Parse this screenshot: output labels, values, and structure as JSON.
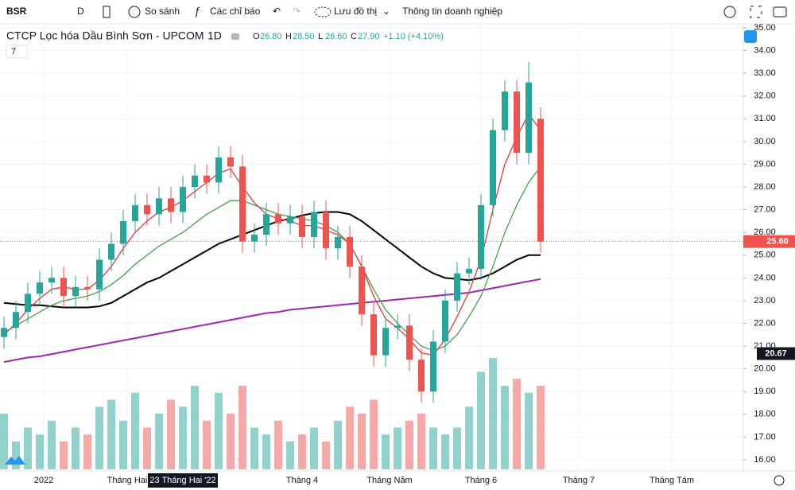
{
  "toolbar": {
    "symbol": "BSR",
    "interval": "D",
    "compare": "So sánh",
    "indicators": "Các chỉ báo",
    "save": "Lưu đồ thị",
    "info": "Thông tin doanh nghiệp"
  },
  "legend": {
    "title": "CTCP Lọc hóa Dầu Bình Sơn - UPCOM",
    "interval": "1D",
    "ohlc": [
      {
        "key": "O",
        "value": 26.8,
        "label": "26.80"
      },
      {
        "key": "H",
        "value": 28.5,
        "label": "28.50"
      },
      {
        "key": "L",
        "value": 26.6,
        "label": "26.60"
      },
      {
        "key": "C",
        "value": 27.9,
        "label": "27.90"
      }
    ],
    "change": "+1.10 (+4.10%)",
    "indicator_count": "7"
  },
  "chart_data": {
    "type": "candlestick",
    "open": [
      21.4,
      21.8,
      22.5,
      23.3,
      23.8,
      24.0,
      23.2,
      23.6,
      23.5,
      24.8,
      25.5,
      26.5,
      27.2,
      26.8,
      27.5,
      26.9,
      28.0,
      28.5,
      28.2,
      29.3,
      28.9,
      25.6,
      25.9,
      26.8,
      26.4,
      26.7,
      25.8,
      26.9,
      25.3,
      25.8,
      24.5,
      22.4,
      20.6,
      21.8,
      21.9,
      20.4,
      19.0,
      21.2,
      23.0,
      24.2,
      24.4,
      27.2,
      30.5,
      32.2,
      29.5,
      31.0
    ],
    "high": [
      22.3,
      23.0,
      23.8,
      24.3,
      24.5,
      24.5,
      24.1,
      24.1,
      25.3,
      26.0,
      27.0,
      27.7,
      27.7,
      28.0,
      28.0,
      28.5,
      29.0,
      29.0,
      29.8,
      29.8,
      29.4,
      26.4,
      27.3,
      27.3,
      27.2,
      27.2,
      27.4,
      27.4,
      26.3,
      26.3,
      25.0,
      22.9,
      22.3,
      22.4,
      22.4,
      20.9,
      21.7,
      23.5,
      24.7,
      24.9,
      27.7,
      31.0,
      32.7,
      32.7,
      33.5,
      31.5
    ],
    "low": [
      20.9,
      21.3,
      22.0,
      22.8,
      23.3,
      22.7,
      22.7,
      23.0,
      23.0,
      24.3,
      25.0,
      26.0,
      26.3,
      26.3,
      26.4,
      26.4,
      27.5,
      27.7,
      27.7,
      28.4,
      25.1,
      25.1,
      25.4,
      25.9,
      25.9,
      25.3,
      25.3,
      24.8,
      24.8,
      24.0,
      21.9,
      20.1,
      20.1,
      21.3,
      19.9,
      18.5,
      18.5,
      20.7,
      22.5,
      23.7,
      23.9,
      26.7,
      30.0,
      29.0,
      29.0,
      25.1
    ],
    "close": [
      21.8,
      22.5,
      23.3,
      23.8,
      24.0,
      23.2,
      23.6,
      23.5,
      24.8,
      25.5,
      26.5,
      27.2,
      26.8,
      27.5,
      26.9,
      28.0,
      28.5,
      28.2,
      29.3,
      28.9,
      25.6,
      25.9,
      26.8,
      26.4,
      26.7,
      25.8,
      26.9,
      25.3,
      25.8,
      24.5,
      22.4,
      20.6,
      21.8,
      21.9,
      20.4,
      19.0,
      21.2,
      23.0,
      24.2,
      24.4,
      27.2,
      30.5,
      32.2,
      29.5,
      32.6,
      25.6
    ],
    "volume": [
      40,
      20,
      30,
      25,
      35,
      20,
      30,
      25,
      45,
      50,
      35,
      55,
      30,
      40,
      50,
      45,
      60,
      35,
      55,
      40,
      60,
      30,
      25,
      35,
      20,
      25,
      30,
      20,
      35,
      45,
      40,
      50,
      25,
      30,
      35,
      40,
      30,
      25,
      30,
      45,
      70,
      80,
      60,
      65,
      55,
      60
    ],
    "up_color": "#26a69a",
    "down_color": "#ef5350",
    "series": [
      {
        "color": "#000000",
        "values": [
          22.9,
          22.85,
          22.8,
          22.8,
          22.75,
          22.7,
          22.7,
          22.7,
          22.75,
          22.9,
          23.2,
          23.5,
          23.8,
          24.0,
          24.3,
          24.6,
          24.9,
          25.2,
          25.5,
          25.7,
          25.9,
          26.1,
          26.3,
          26.5,
          26.6,
          26.75,
          26.85,
          26.9,
          26.9,
          26.8,
          26.5,
          26.1,
          25.7,
          25.3,
          24.9,
          24.5,
          24.2,
          24.0,
          23.95,
          23.9,
          24.0,
          24.2,
          24.5,
          24.8,
          25.0,
          25.0
        ]
      },
      {
        "color": "#9c27b0",
        "values": [
          20.3,
          20.4,
          20.5,
          20.55,
          20.65,
          20.75,
          20.85,
          20.95,
          21.05,
          21.15,
          21.25,
          21.35,
          21.45,
          21.55,
          21.65,
          21.75,
          21.85,
          21.95,
          22.05,
          22.15,
          22.25,
          22.35,
          22.45,
          22.5,
          22.6,
          22.65,
          22.7,
          22.75,
          22.8,
          22.85,
          22.9,
          22.95,
          23.0,
          23.05,
          23.1,
          23.15,
          23.2,
          23.25,
          23.3,
          23.35,
          23.45,
          23.55,
          23.65,
          23.75,
          23.85,
          23.95
        ]
      },
      {
        "color": "#43a047",
        "values": [
          21.6,
          21.9,
          22.2,
          22.5,
          22.8,
          23.0,
          23.1,
          23.2,
          23.4,
          23.7,
          24.1,
          24.6,
          25.0,
          25.4,
          25.7,
          26.0,
          26.4,
          26.8,
          27.1,
          27.4,
          27.4,
          27.2,
          27.0,
          26.8,
          26.7,
          26.6,
          26.5,
          26.3,
          26.0,
          25.5,
          24.5,
          23.5,
          22.6,
          22.0,
          21.5,
          21.0,
          20.8,
          21.0,
          21.5,
          22.3,
          23.2,
          24.5,
          26.0,
          27.2,
          28.2,
          28.9
        ]
      },
      {
        "color": "#e53935",
        "values": [
          21.5,
          22.0,
          22.6,
          23.1,
          23.5,
          23.6,
          23.5,
          23.5,
          23.9,
          24.5,
          25.3,
          26.0,
          26.5,
          26.9,
          27.1,
          27.4,
          27.8,
          28.2,
          28.6,
          28.8,
          28.0,
          27.3,
          26.8,
          26.6,
          26.5,
          26.3,
          26.3,
          26.1,
          25.9,
          25.5,
          24.5,
          23.2,
          22.2,
          21.8,
          21.3,
          20.7,
          20.6,
          21.3,
          22.3,
          23.4,
          24.8,
          27.0,
          29.0,
          30.2,
          31.2,
          30.5
        ]
      }
    ],
    "ylim": [
      16,
      35
    ],
    "yticks": [
      {
        "value": 16,
        "label": "16.00"
      },
      {
        "value": 17,
        "label": "17.00"
      },
      {
        "value": 18,
        "label": "18.00"
      },
      {
        "value": 19,
        "label": "19.00"
      },
      {
        "value": 20,
        "label": "20.00"
      },
      {
        "value": 21,
        "label": "21.00"
      },
      {
        "value": 22,
        "label": "22.00"
      },
      {
        "value": 23,
        "label": "23.00"
      },
      {
        "value": 24,
        "label": "24.00"
      },
      {
        "value": 25,
        "label": "25.00"
      },
      {
        "value": 26,
        "label": "26.00"
      },
      {
        "value": 27,
        "label": "27.00"
      },
      {
        "value": 28,
        "label": "28.00"
      },
      {
        "value": 29,
        "label": "29.00"
      },
      {
        "value": 30,
        "label": "30.00"
      },
      {
        "value": 31,
        "label": "31.00"
      },
      {
        "value": 32,
        "label": "32.00"
      },
      {
        "value": 33,
        "label": "33.00"
      },
      {
        "value": 34,
        "label": "34.00"
      },
      {
        "value": 35,
        "label": "35.00"
      }
    ],
    "last_price": {
      "value": 25.6,
      "label": "25.60"
    },
    "crosshair_price": {
      "value": 20.67,
      "label": "20.67"
    },
    "crosshair_date": "23 Tháng Hai '22",
    "time_labels": [
      "2022",
      "Tháng Hai",
      "Tháng 4",
      "Tháng Năm",
      "Tháng 6",
      "Tháng 7",
      "Tháng Tám"
    ],
    "grid": true
  }
}
